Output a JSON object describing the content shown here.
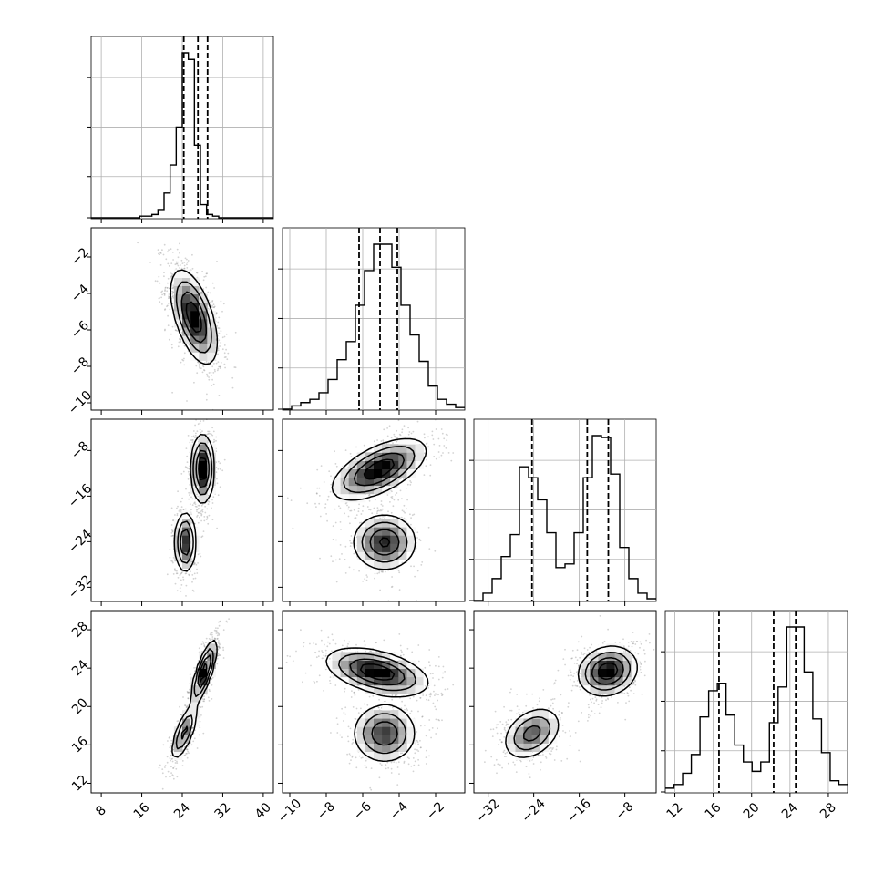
{
  "chart_data": {
    "type": "corner",
    "grid": true,
    "quantile_lines": "dashed",
    "hist_color": "#000000",
    "scatter_color": "#808080",
    "contour_color": "#000000",
    "params": [
      {
        "range": [
          6,
          42
        ],
        "ticks": [
          "8",
          "16",
          "24",
          "32",
          "40"
        ],
        "tick_values": [
          8,
          16,
          24,
          32,
          40
        ],
        "quantiles": [
          24.3,
          27.1,
          29.0
        ],
        "hist": [
          0,
          0,
          0,
          0,
          0,
          0,
          0,
          0,
          1,
          1,
          2,
          5,
          15,
          32,
          55,
          100,
          96,
          44,
          8,
          2,
          1,
          0,
          0,
          0,
          0,
          0,
          0,
          0,
          0,
          0
        ]
      },
      {
        "range": [
          -10.4,
          -0.4
        ],
        "ticks": [
          "−10",
          "−8",
          "−6",
          "−4",
          "−2"
        ],
        "tick_values": [
          -10,
          -8,
          -6,
          -4,
          -2
        ],
        "quantiles": [
          -6.2,
          -5.05,
          -4.1
        ],
        "hist": [
          0,
          2,
          4,
          6,
          10,
          18,
          30,
          41,
          63,
          84,
          100,
          100,
          86,
          63,
          45,
          29,
          14,
          6,
          3,
          1
        ]
      },
      {
        "range": [
          -34.5,
          -2.5
        ],
        "ticks": [
          "−32",
          "−24",
          "−16",
          "−8"
        ],
        "tick_values": [
          -32,
          -24,
          -16,
          -8
        ],
        "quantiles": [
          -24.3,
          -14.6,
          -10.9
        ],
        "hist": [
          0,
          4,
          12,
          24,
          36,
          73,
          67,
          55,
          37,
          18,
          20,
          37,
          67,
          90,
          89,
          69,
          29,
          12,
          4,
          1
        ]
      },
      {
        "range": [
          11,
          30
        ],
        "ticks": [
          "12",
          "16",
          "20",
          "24",
          "28"
        ],
        "tick_values": [
          12,
          16,
          20,
          24,
          28
        ],
        "quantiles": [
          16.6,
          22.3,
          24.6
        ],
        "hist": [
          2,
          4,
          10,
          20,
          40,
          54,
          58,
          41,
          25,
          16,
          11,
          16,
          37,
          56,
          88,
          88,
          64,
          39,
          21,
          6,
          4
        ]
      }
    ],
    "pairs": [
      {
        "row": 1,
        "col": 0,
        "blobs": [
          {
            "cx": 26.3,
            "cy": -5.3,
            "sx": 2.2,
            "sy": 1.25,
            "rho": -0.55,
            "w": 1.0
          }
        ]
      },
      {
        "row": 2,
        "col": 0,
        "blobs": [
          {
            "cx": 28.0,
            "cy": -11.2,
            "sx": 1.1,
            "sy": 2.9,
            "rho": 0.0,
            "w": 0.6
          },
          {
            "cx": 24.6,
            "cy": -24.1,
            "sx": 1.05,
            "sy": 2.6,
            "rho": 0.0,
            "w": 0.4
          }
        ]
      },
      {
        "row": 2,
        "col": 1,
        "blobs": [
          {
            "cx": -5.1,
            "cy": -11.3,
            "sx": 1.25,
            "sy": 2.6,
            "rho": 0.6,
            "w": 0.6
          },
          {
            "cx": -4.8,
            "cy": -24.1,
            "sx": 0.85,
            "sy": 2.4,
            "rho": 0.0,
            "w": 0.4
          }
        ]
      },
      {
        "row": 3,
        "col": 0,
        "blobs": [
          {
            "cx": 28.3,
            "cy": 23.6,
            "sx": 1.2,
            "sy": 1.6,
            "rho": 0.78,
            "w": 0.6
          },
          {
            "cx": 24.4,
            "cy": 17.3,
            "sx": 1.3,
            "sy": 1.45,
            "rho": 0.72,
            "w": 0.4
          }
        ]
      },
      {
        "row": 3,
        "col": 1,
        "blobs": [
          {
            "cx": -5.2,
            "cy": 23.6,
            "sx": 1.35,
            "sy": 1.2,
            "rho": -0.45,
            "w": 0.6
          },
          {
            "cx": -4.8,
            "cy": 17.2,
            "sx": 0.85,
            "sy": 1.5,
            "rho": 0.0,
            "w": 0.4
          }
        ]
      },
      {
        "row": 3,
        "col": 2,
        "blobs": [
          {
            "cx": -11.0,
            "cy": 23.7,
            "sx": 2.5,
            "sy": 1.25,
            "rho": 0.15,
            "w": 0.6
          },
          {
            "cx": -24.3,
            "cy": 17.2,
            "sx": 2.5,
            "sy": 1.35,
            "rho": 0.35,
            "w": 0.4
          }
        ]
      }
    ]
  }
}
